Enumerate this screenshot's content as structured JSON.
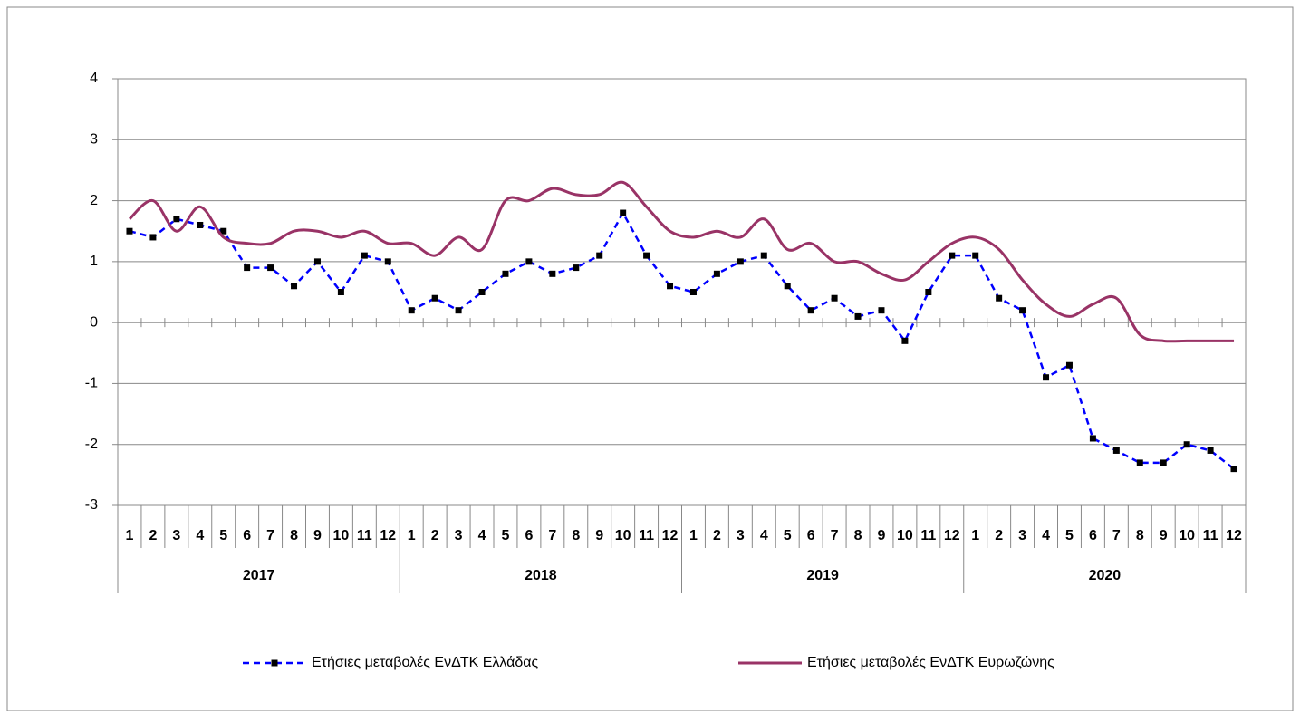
{
  "chart_data": {
    "type": "line",
    "categories": [
      "1",
      "2",
      "3",
      "4",
      "5",
      "6",
      "7",
      "8",
      "9",
      "10",
      "11",
      "12",
      "1",
      "2",
      "3",
      "4",
      "5",
      "6",
      "7",
      "8",
      "9",
      "10",
      "11",
      "12",
      "1",
      "2",
      "3",
      "4",
      "5",
      "6",
      "7",
      "8",
      "9",
      "10",
      "11",
      "12",
      "1",
      "2",
      "3",
      "4",
      "5",
      "6",
      "7",
      "8",
      "9",
      "10",
      "11",
      "12"
    ],
    "category_groups": [
      "2017",
      "2018",
      "2019",
      "2020"
    ],
    "series": [
      {
        "name": "Ετήσιες μεταβολές ΕνΔΤΚ Ελλάδας",
        "color": "#0000ff",
        "dashed": true,
        "markers": true,
        "values": [
          1.5,
          1.4,
          1.7,
          1.6,
          1.5,
          0.9,
          0.9,
          0.6,
          1.0,
          0.5,
          1.1,
          1.0,
          0.2,
          0.4,
          0.2,
          0.5,
          0.8,
          1.0,
          0.8,
          0.9,
          1.1,
          1.8,
          1.1,
          0.6,
          0.5,
          0.8,
          1.0,
          1.1,
          0.6,
          0.2,
          0.4,
          0.1,
          0.2,
          -0.3,
          0.5,
          1.1,
          1.1,
          0.4,
          0.2,
          -0.9,
          -0.7,
          -1.9,
          -2.1,
          -2.3,
          -2.3,
          -2.0,
          -2.1,
          -2.4
        ]
      },
      {
        "name": "Ετήσιες μεταβολές ΕνΔΤΚ Ευρωζώνης",
        "color": "#993366",
        "smooth": true,
        "markers": false,
        "values": [
          1.7,
          2.0,
          1.5,
          1.9,
          1.4,
          1.3,
          1.3,
          1.5,
          1.5,
          1.4,
          1.5,
          1.3,
          1.3,
          1.1,
          1.4,
          1.2,
          2.0,
          2.0,
          2.2,
          2.1,
          2.1,
          2.3,
          1.9,
          1.5,
          1.4,
          1.5,
          1.4,
          1.7,
          1.2,
          1.3,
          1.0,
          1.0,
          0.8,
          0.7,
          1.0,
          1.3,
          1.4,
          1.2,
          0.7,
          0.3,
          0.1,
          0.3,
          0.4,
          -0.2,
          -0.3,
          -0.3,
          -0.3,
          -0.3
        ]
      }
    ],
    "ylim": [
      -3,
      4
    ],
    "yticks": [
      -3,
      -2,
      -1,
      0,
      1,
      2,
      3,
      4
    ],
    "grid": true,
    "legend": "bottom"
  }
}
